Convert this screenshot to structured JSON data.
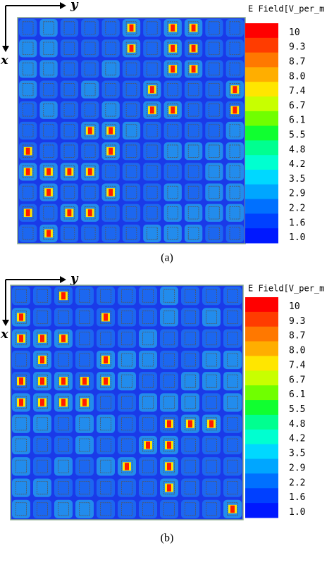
{
  "panels": [
    {
      "axis_y": "y",
      "axis_x": "x",
      "legend_title": "E Field[V_per_m",
      "legend_labels": [
        "10",
        "9.3",
        "8.7",
        "8.0",
        "7.4",
        "6.7",
        "6.1",
        "5.5",
        "4.8",
        "4.2",
        "3.5",
        "2.9",
        "2.2",
        "1.6",
        "1.0"
      ],
      "caption": "(a)"
    },
    {
      "axis_y": "y",
      "axis_x": "x",
      "legend_title": "E Field[V_per_m",
      "legend_labels": [
        "10",
        "9.3",
        "8.7",
        "8.0",
        "7.4",
        "6.7",
        "6.1",
        "5.5",
        "4.8",
        "4.2",
        "3.5",
        "2.9",
        "2.2",
        "1.6",
        "1.0"
      ],
      "caption": "(b)"
    }
  ],
  "legend_colors": [
    "#ff0000",
    "#ff3c00",
    "#ff7800",
    "#ffae00",
    "#ffe600",
    "#c8ff00",
    "#70ff00",
    "#10ff30",
    "#00ff90",
    "#00ffd0",
    "#00d8ff",
    "#00a6ff",
    "#0070ff",
    "#0040ff",
    "#0018ff"
  ]
}
